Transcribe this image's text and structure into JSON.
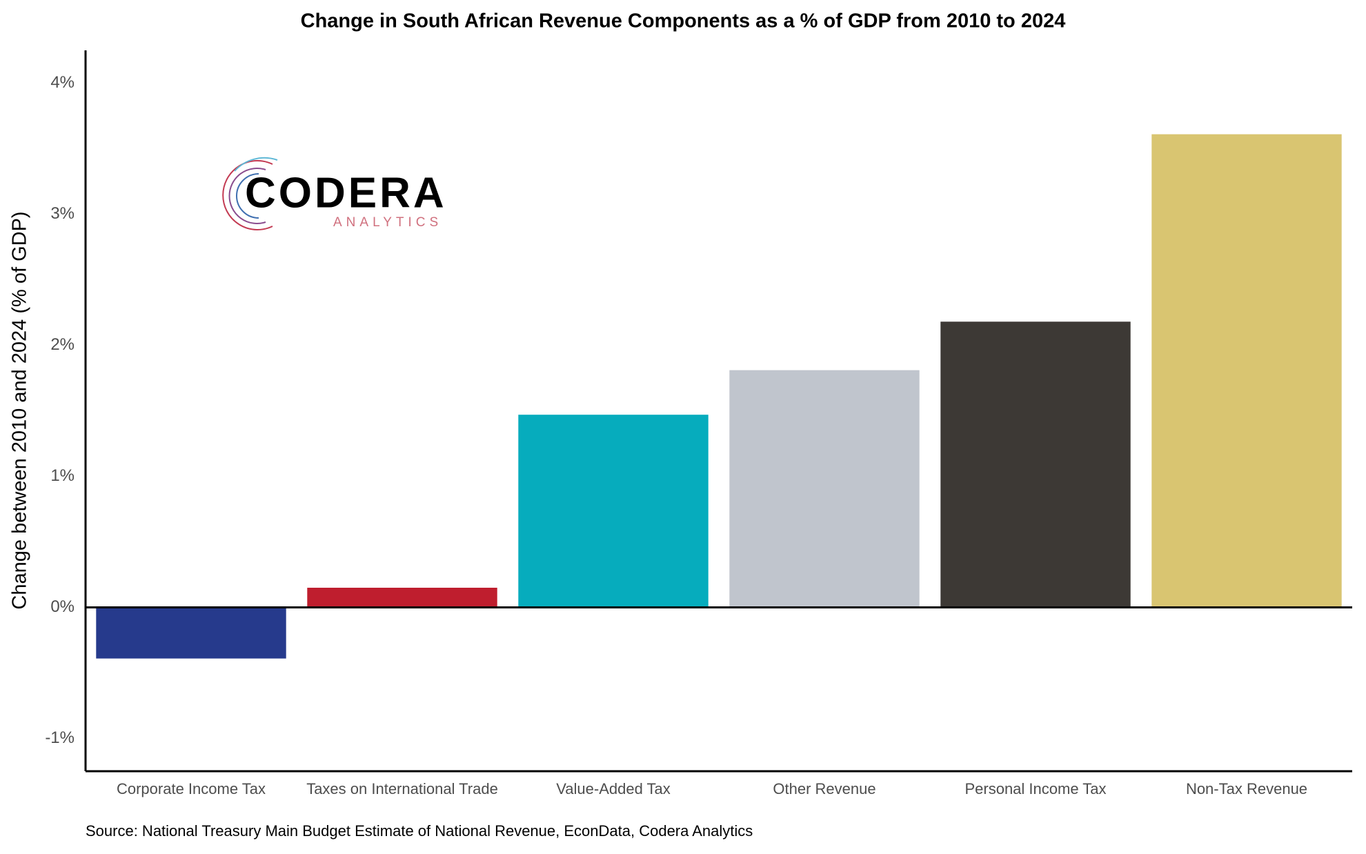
{
  "chart_data": {
    "type": "bar",
    "title": "Change in South African Revenue Components as a % of GDP from 2010 to 2024",
    "y_label": "Change between 2010 and 2024 (% of GDP)",
    "source": "Source: National Treasury Main Budget Estimate of National Revenue, EconData, Codera Analytics",
    "categories": [
      "Corporate Income Tax",
      "Taxes on International Trade",
      "Value-Added Tax",
      "Other Revenue",
      "Personal Income Tax",
      "Non-Tax Revenue"
    ],
    "values": [
      -0.39,
      0.15,
      1.47,
      1.81,
      2.18,
      3.61
    ],
    "colors": [
      "#263a8c",
      "#bf1e2e",
      "#06acbd",
      "#c0c5cd",
      "#3d3935",
      "#d9c571"
    ],
    "ylim": [
      -1.25,
      4.25
    ],
    "yticks": [
      {
        "value": -1,
        "label": "-1%"
      },
      {
        "value": 0,
        "label": "0%"
      },
      {
        "value": 1,
        "label": "1%"
      },
      {
        "value": 2,
        "label": "2%"
      },
      {
        "value": 3,
        "label": "3%"
      },
      {
        "value": 4,
        "label": "4%"
      }
    ],
    "grid": false,
    "logo": {
      "name": "CODERA",
      "tagline": "ANALYTICS"
    }
  }
}
